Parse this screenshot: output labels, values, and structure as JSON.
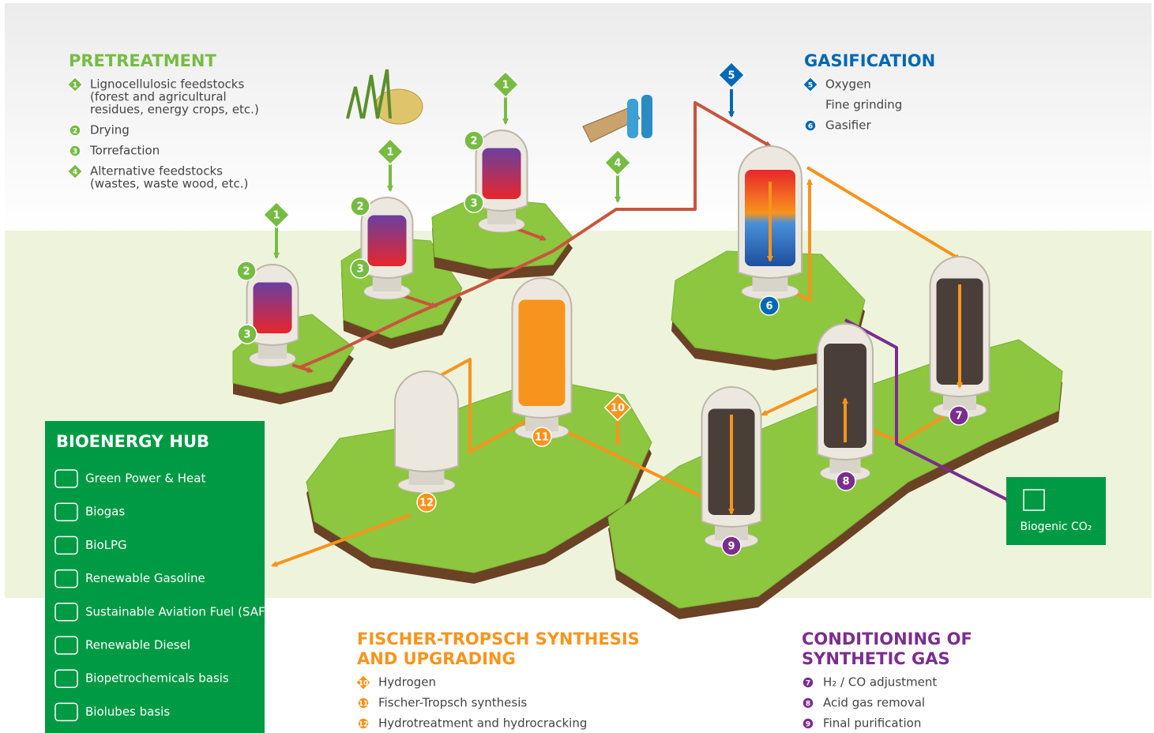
{
  "pretreatment": {
    "title": "PRETREATMENT",
    "items": [
      {
        "number": "1",
        "lines": [
          "Lignocellulosic feedstocks",
          "(forest and agricultural",
          "residues, energy crops, etc.)"
        ]
      },
      {
        "number": "2",
        "lines": [
          "Drying"
        ]
      },
      {
        "number": "3",
        "lines": [
          "Torrefaction"
        ]
      },
      {
        "number": "4",
        "lines": [
          "Alternative feedstocks",
          "(wastes, waste wood, etc.)"
        ]
      }
    ]
  },
  "gasification": {
    "title": "GASIFICATION",
    "items": [
      {
        "number": "5",
        "lines": [
          "Oxygen"
        ]
      },
      {
        "lines": [
          "Fine grinding"
        ]
      },
      {
        "number": "6",
        "lines": [
          "Gasifier"
        ]
      }
    ]
  },
  "fischer_tropsch": {
    "title": [
      "FISCHER-TROPSCH SYNTHESIS",
      "AND UPGRADING"
    ],
    "items": [
      {
        "number": "10",
        "lines": [
          "Hydrogen"
        ]
      },
      {
        "number": "11",
        "lines": [
          "Fischer-Tropsch synthesis"
        ]
      },
      {
        "number": "12",
        "lines": [
          "Hydrotreatment and hydrocracking"
        ]
      }
    ]
  },
  "conditioning": {
    "title": [
      "CONDITIONING OF",
      "SYNTHETIC GAS"
    ],
    "items": [
      {
        "number": "7",
        "lines": [
          "H₂ / CO adjustment"
        ]
      },
      {
        "number": "8",
        "lines": [
          "Acid gas removal"
        ]
      },
      {
        "number": "9",
        "lines": [
          "Final purification"
        ]
      }
    ]
  },
  "bioenergy_hub": {
    "title": "BIOENERGY HUB",
    "items": [
      "Green Power & Heat",
      "Biogas",
      "BioLPG",
      "Renewable Gasoline",
      "Sustainable Aviation Fuel (SAF)",
      "Renewable Diesel",
      "Biopetrochemicals basis",
      "Biolubes basis"
    ]
  },
  "biogenic_co2": "Biogenic CO₂",
  "markers": [
    "1",
    "2",
    "3",
    "1",
    "2",
    "3",
    "1",
    "2",
    "3",
    "4",
    "5",
    "6",
    "7",
    "8",
    "9",
    "10",
    "11",
    "12"
  ]
}
